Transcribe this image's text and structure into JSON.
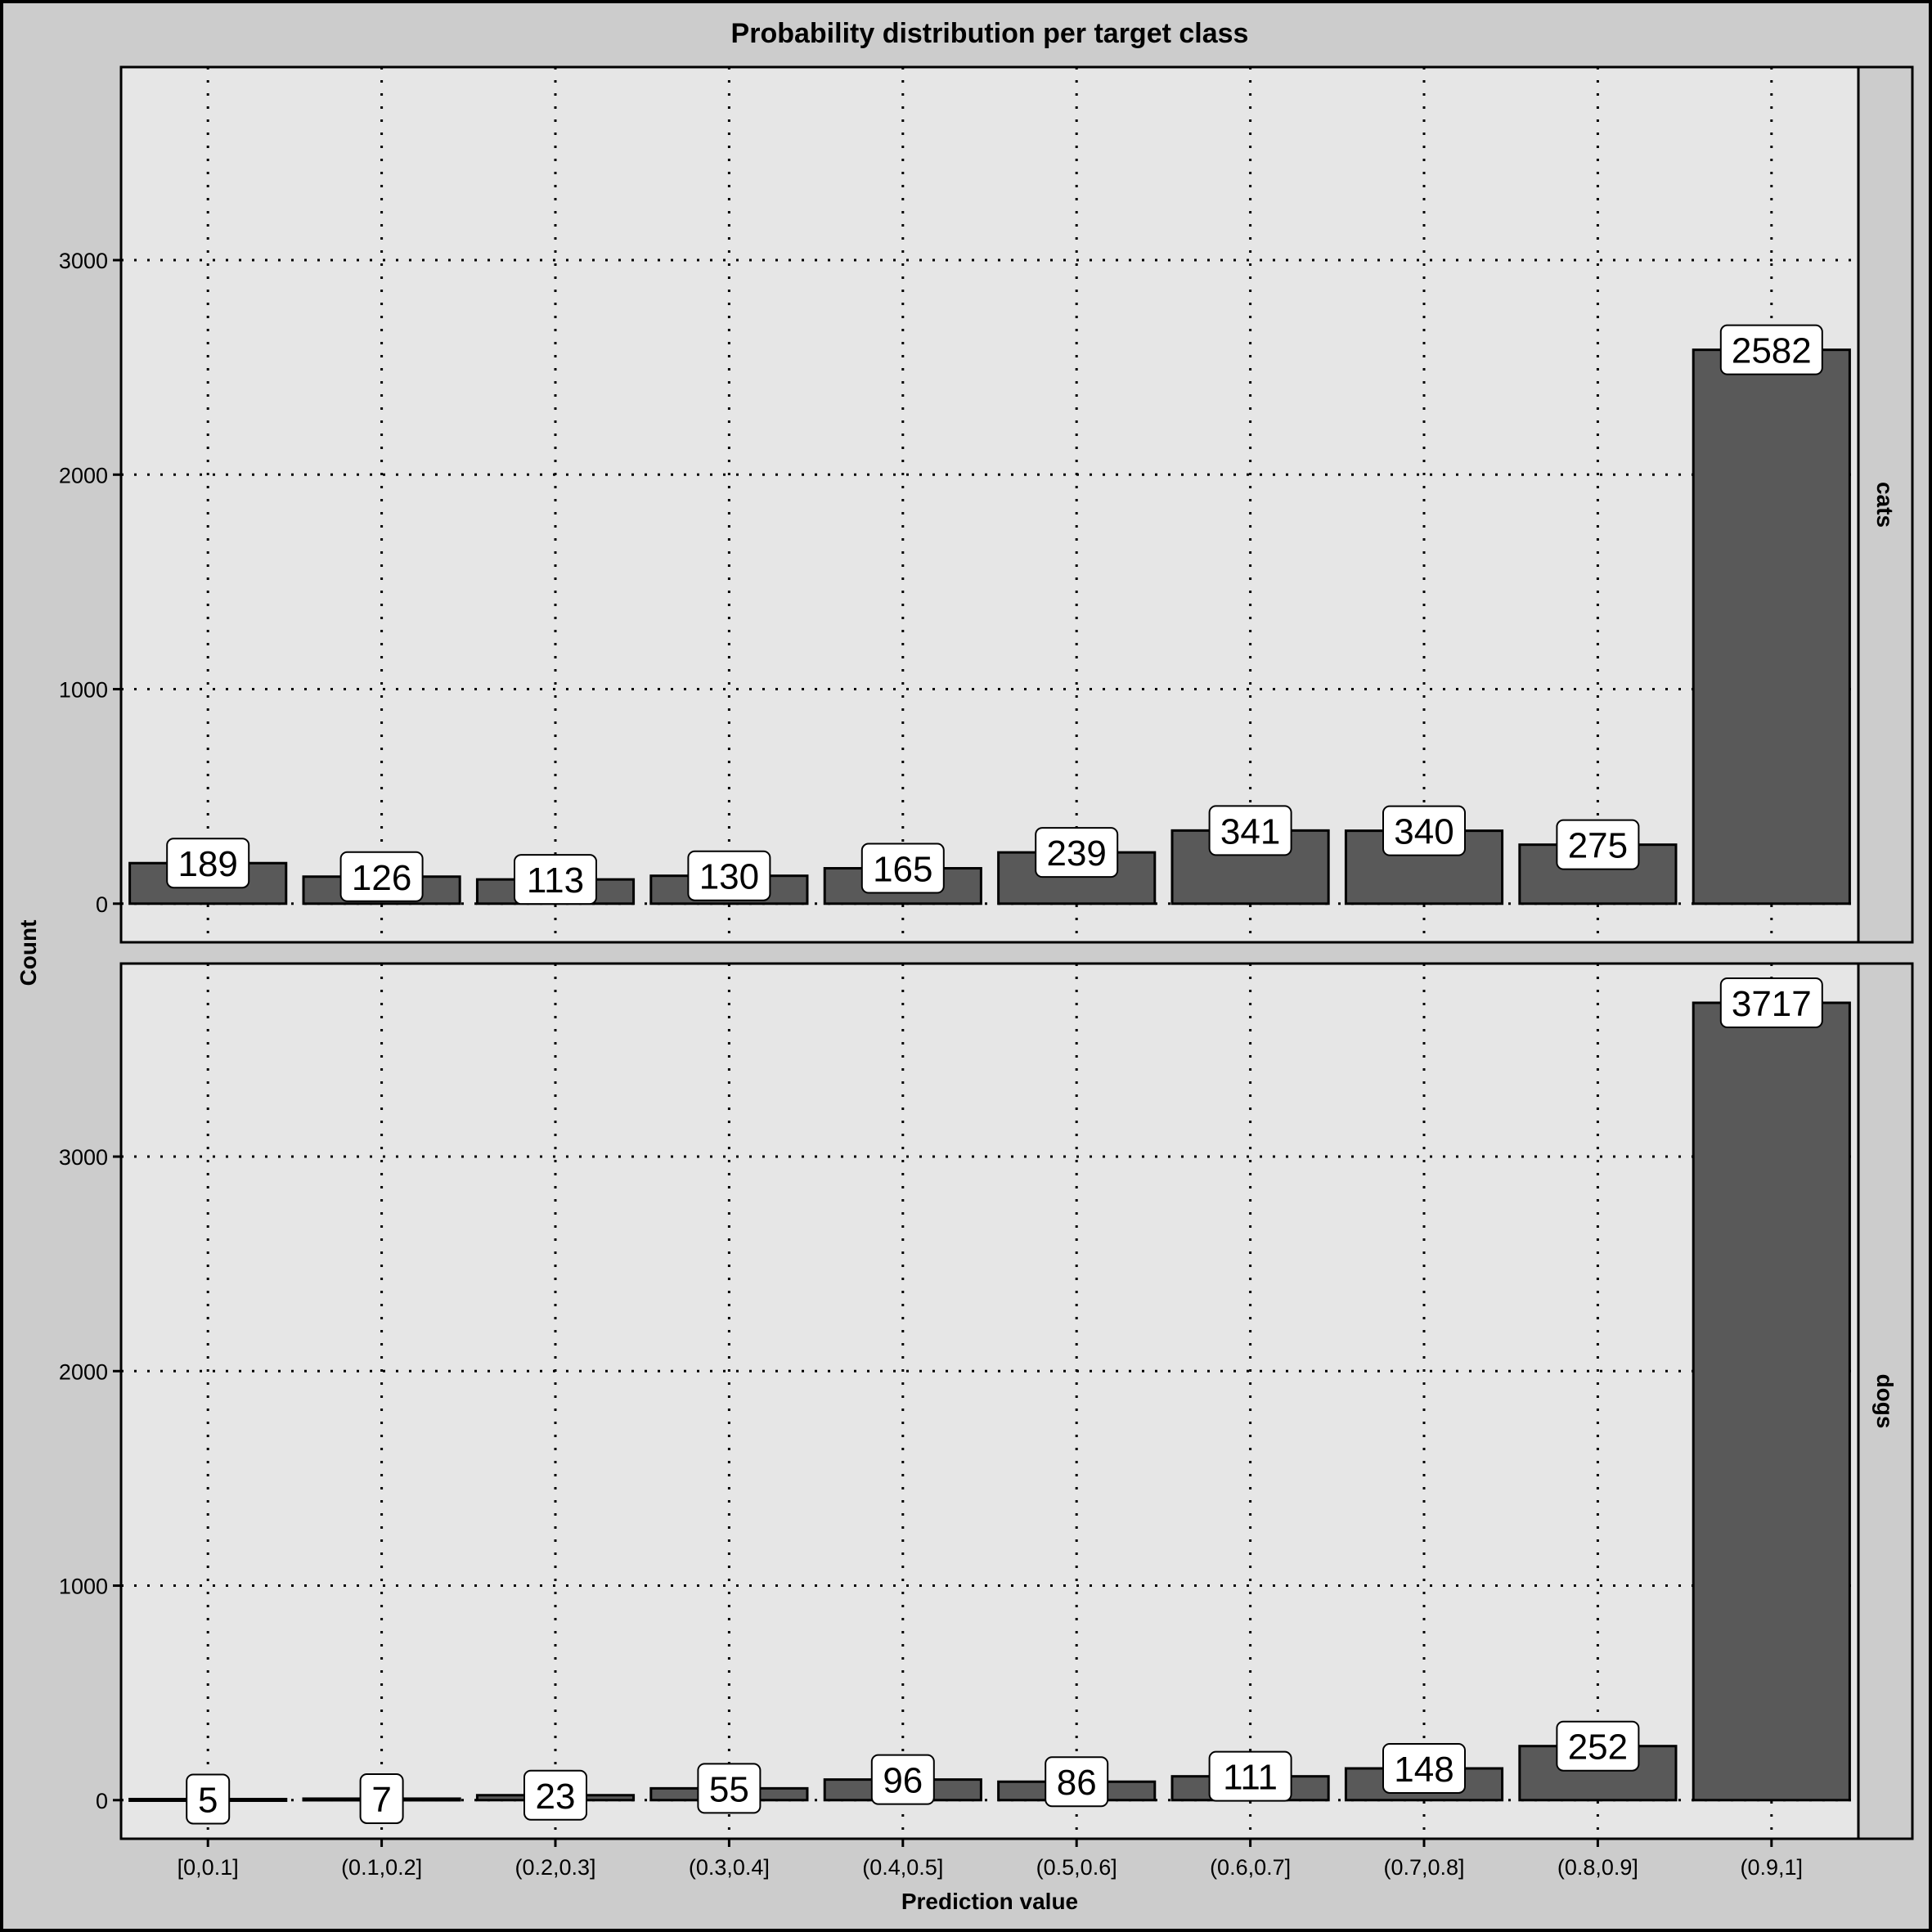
{
  "chart_data": {
    "type": "bar",
    "title": "Probability distribution per target class",
    "xlabel": "Prediction value",
    "ylabel": "Count",
    "categories": [
      "[0,0.1]",
      "(0.1,0.2]",
      "(0.2,0.3]",
      "(0.3,0.4]",
      "(0.4,0.5]",
      "(0.5,0.6]",
      "(0.6,0.7]",
      "(0.7,0.8]",
      "(0.8,0.9]",
      "(0.9,1]"
    ],
    "yticks": [
      0,
      1000,
      2000,
      3000
    ],
    "ylim": [
      -180,
      3900
    ],
    "grid": true,
    "facets": [
      {
        "label": "cats",
        "values": [
          189,
          126,
          113,
          130,
          165,
          239,
          341,
          340,
          275,
          2582
        ]
      },
      {
        "label": "dogs",
        "values": [
          5,
          7,
          23,
          55,
          96,
          86,
          111,
          148,
          252,
          3717
        ]
      }
    ],
    "colors": {
      "background": "#cccccc",
      "panel": "#e6e6e6",
      "bar": "#595959",
      "strip": "#cccccc",
      "label_box": "#ffffff"
    }
  }
}
